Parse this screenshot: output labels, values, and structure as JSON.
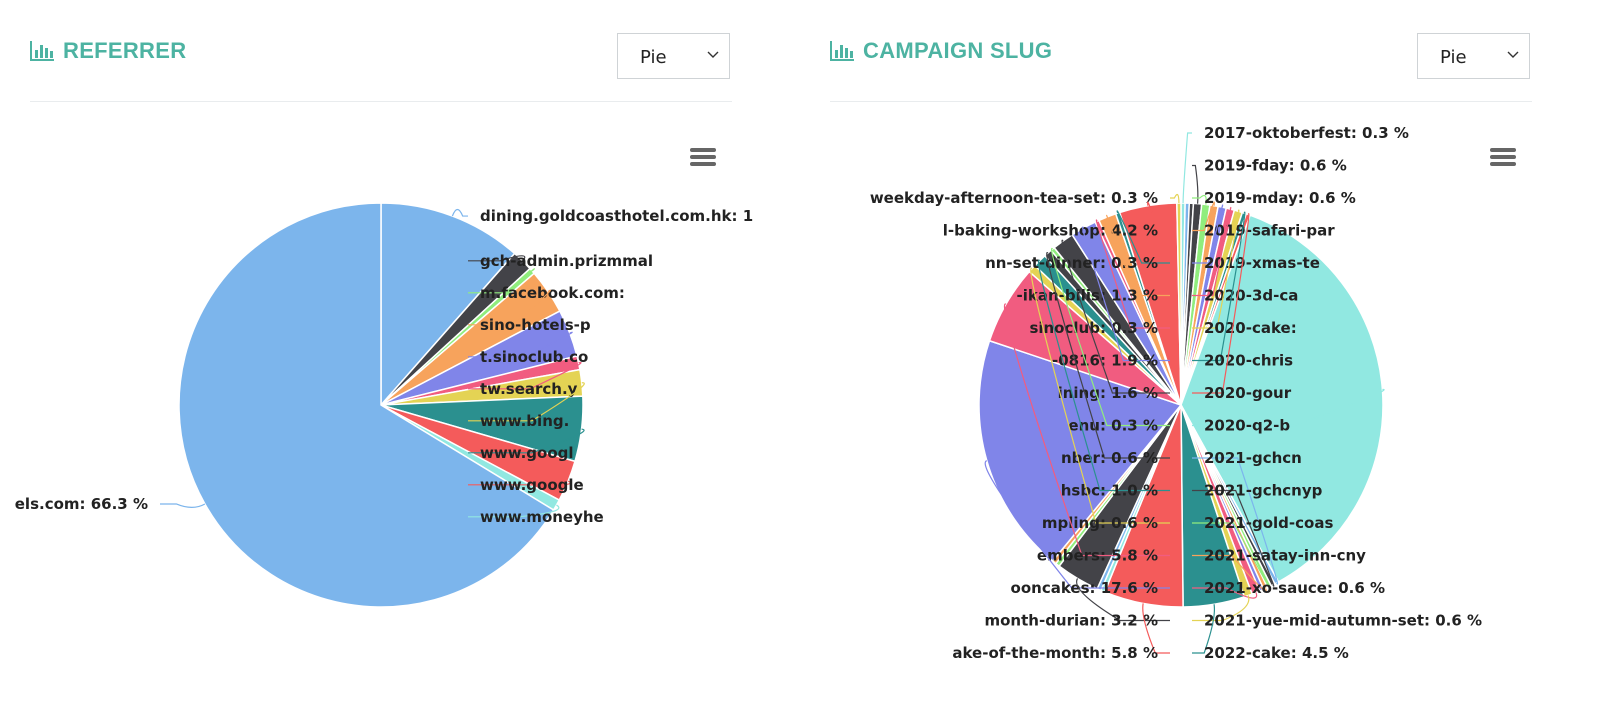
{
  "panels": {
    "referrer": {
      "title": "REFERRER",
      "select_value": "Pie",
      "menu_icon": "hamburger-menu-icon",
      "title_icon": "bar-chart-icon"
    },
    "campaign": {
      "title": "CAMPAIGN SLUG",
      "select_value": "Pie",
      "menu_icon": "hamburger-menu-icon",
      "title_icon": "bar-chart-icon"
    }
  },
  "colors": {
    "accent": "#4db3a2"
  },
  "chart_data": [
    {
      "type": "pie",
      "title": "",
      "slices": [
        {
          "label": "dining.goldcoasthotel.com.hk: 1",
          "value": 11.5,
          "color": "#7cb5ec"
        },
        {
          "label": "gch-admin.prizmmal",
          "value": 1.7,
          "color": "#434348"
        },
        {
          "label": "m.facebook.com:",
          "value": 0.5,
          "color": "#90ed7d"
        },
        {
          "label": "sino-hotels-p",
          "value": 3.6,
          "color": "#f7a35c"
        },
        {
          "label": "t.sinoclub.co",
          "value": 3.8,
          "color": "#8085e9"
        },
        {
          "label": "tw.search.y",
          "value": 1.1,
          "color": "#f15c80"
        },
        {
          "label": "www.bing.",
          "value": 2.1,
          "color": "#e4d354"
        },
        {
          "label": "www.googl",
          "value": 5.2,
          "color": "#2b908f"
        },
        {
          "label": "www.google",
          "value": 3.3,
          "color": "#f45b5b"
        },
        {
          "label": "www.moneyhe",
          "value": 0.9,
          "color": "#91e8e1"
        },
        {
          "label": "els.com: 66.3 %",
          "value": 66.3,
          "color": "#7cb5ec"
        }
      ]
    },
    {
      "type": "pie",
      "title": "",
      "slices": [
        {
          "label": "2017-oktoberfest: 0.3 %",
          "value": 0.3,
          "color": "#91e8e1"
        },
        {
          "label": "",
          "value": 0.3,
          "color": "#7cb5ec"
        },
        {
          "label": "",
          "value": 0.3,
          "color": "#434348"
        },
        {
          "label": "2019-fday: 0.6 %",
          "value": 0.6,
          "color": "#434348"
        },
        {
          "label": "2019-mday: 0.6 %",
          "value": 0.6,
          "color": "#90ed7d"
        },
        {
          "label": "2019-safari-par",
          "value": 0.6,
          "color": "#f7a35c"
        },
        {
          "label": "2019-xmas-te",
          "value": 0.6,
          "color": "#8085e9"
        },
        {
          "label": "2020-3d-ca",
          "value": 0.6,
          "color": "#f15c80"
        },
        {
          "label": "2020-cake:",
          "value": 0.6,
          "color": "#e4d354"
        },
        {
          "label": "2020-chris",
          "value": 0.3,
          "color": "#2b908f"
        },
        {
          "label": "2020-gour",
          "value": 0.3,
          "color": "#f45b5b"
        },
        {
          "label": "2020-q2-b",
          "value": 33.4,
          "color": "#91e8e1"
        },
        {
          "label": "2021-gchcn",
          "value": 0.3,
          "color": "#7cb5ec"
        },
        {
          "label": "2021-gchcnyp",
          "value": 0.3,
          "color": "#434348"
        },
        {
          "label": "2021-gold-coas",
          "value": 0.3,
          "color": "#90ed7d"
        },
        {
          "label": "2021-satay-inn-cny",
          "value": 0.3,
          "color": "#f7a35c"
        },
        {
          "label": "",
          "value": 0.3,
          "color": "#8085e9"
        },
        {
          "label": "2021-xo-sauce: 0.6 %",
          "value": 0.6,
          "color": "#f15c80"
        },
        {
          "label": "2021-yue-mid-autumn-set: 0.6 %",
          "value": 0.6,
          "color": "#e4d354"
        },
        {
          "label": "2022-cake: 4.5 %",
          "value": 4.5,
          "color": "#2b908f"
        },
        {
          "label": "ake-of-the-month: 5.8 %",
          "value": 5.8,
          "color": "#f45b5b"
        },
        {
          "label": "",
          "value": 0.3,
          "color": "#91e8e1"
        },
        {
          "label": "",
          "value": 0.3,
          "color": "#7cb5ec"
        },
        {
          "label": "month-durian: 3.2 %",
          "value": 3.2,
          "color": "#434348"
        },
        {
          "label": "",
          "value": 0.3,
          "color": "#90ed7d"
        },
        {
          "label": "",
          "value": 0.3,
          "color": "#f7a35c"
        },
        {
          "label": "ooncakes: 17.6 %",
          "value": 17.6,
          "color": "#8085e9"
        },
        {
          "label": "embers: 5.8 %",
          "value": 5.8,
          "color": "#f15c80"
        },
        {
          "label": "mpling: 0.6 %",
          "value": 0.6,
          "color": "#e4d354"
        },
        {
          "label": "hsbc: 1.0 %",
          "value": 1.0,
          "color": "#2b908f"
        },
        {
          "label": "nber: 0.6 %",
          "value": 0.6,
          "color": "#434348"
        },
        {
          "label": "enu: 0.3 %",
          "value": 0.3,
          "color": "#90ed7d"
        },
        {
          "label": "ining: 1.6 %",
          "value": 1.6,
          "color": "#434348"
        },
        {
          "label": "-0816: 1.9 %",
          "value": 1.9,
          "color": "#8085e9"
        },
        {
          "label": "sinoclub: 0.3 %",
          "value": 0.3,
          "color": "#f15c80"
        },
        {
          "label": "-ikan-bilis: 1.3 %",
          "value": 1.3,
          "color": "#f7a35c"
        },
        {
          "label": "nn-set-dinner: 0.3 %",
          "value": 0.3,
          "color": "#2b908f"
        },
        {
          "label": "l-baking-workshop: 4.2 %",
          "value": 4.2,
          "color": "#f45b5b"
        },
        {
          "label": "weekday-afternoon-tea-set: 0.3 %",
          "value": 0.3,
          "color": "#e4d354"
        }
      ]
    }
  ]
}
